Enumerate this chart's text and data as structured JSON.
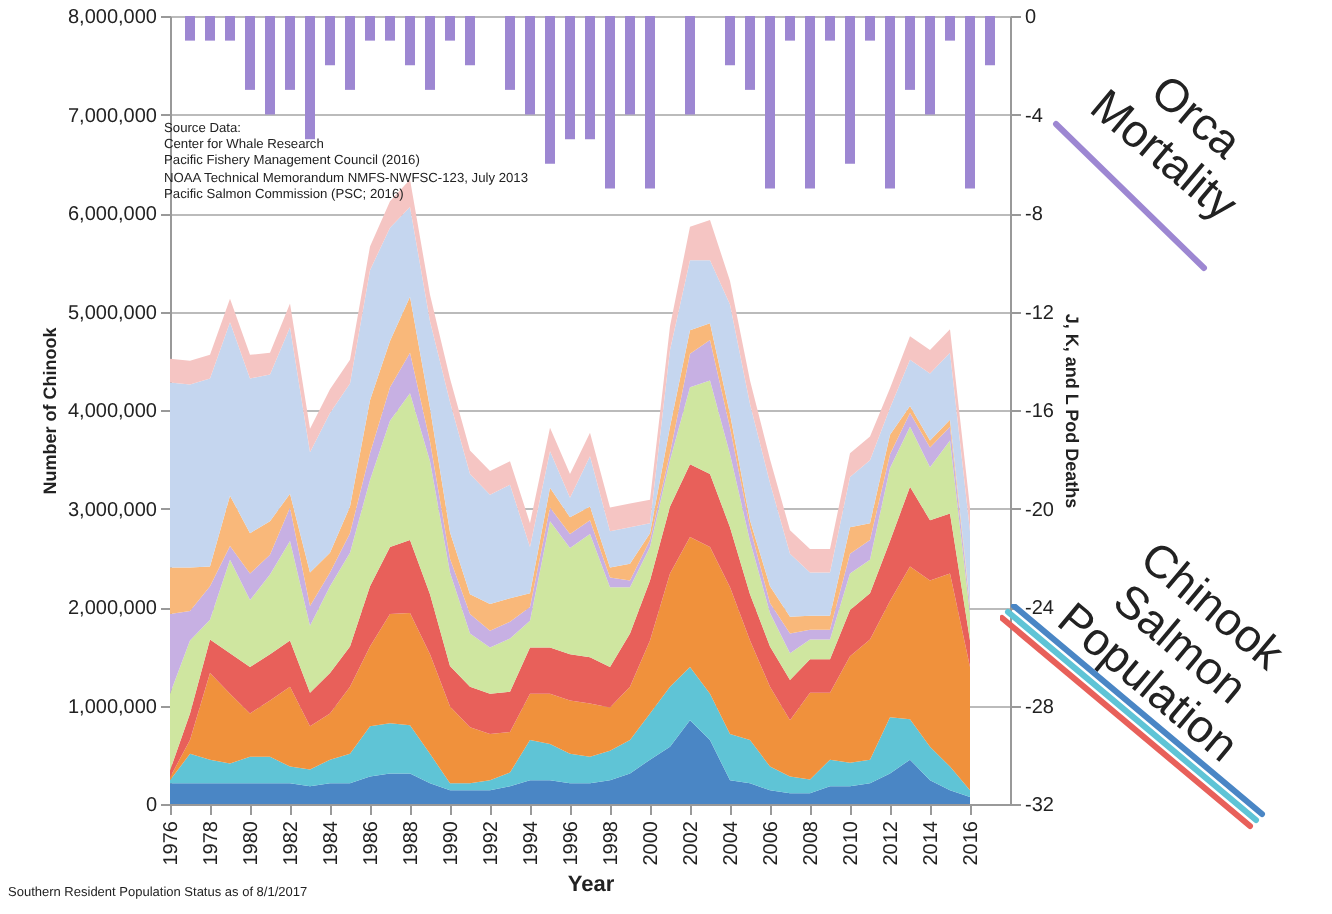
{
  "chart_data": {
    "type": "area",
    "stacked": true,
    "xlabel": "Year",
    "ylabel": "Number of Chinook",
    "y2label": "J, K, and L Pod Deaths",
    "x": [
      1976,
      1977,
      1978,
      1979,
      1980,
      1981,
      1982,
      1983,
      1984,
      1985,
      1986,
      1987,
      1988,
      1989,
      1990,
      1991,
      1992,
      1993,
      1994,
      1995,
      1996,
      1997,
      1998,
      1999,
      2000,
      2001,
      2002,
      2003,
      2004,
      2005,
      2006,
      2007,
      2008,
      2009,
      2010,
      2011,
      2012,
      2013,
      2014,
      2015,
      2016
    ],
    "xlim": [
      1976,
      2018
    ],
    "xticks": [
      1976,
      1978,
      1980,
      1982,
      1984,
      1986,
      1988,
      1990,
      1992,
      1994,
      1996,
      1998,
      2000,
      2002,
      2004,
      2006,
      2008,
      2010,
      2012,
      2014,
      2016
    ],
    "ylim": [
      0,
      8000000
    ],
    "yticks": [
      0,
      {
        "value": 1000000,
        "label": "1,000,000"
      },
      {
        "value": 2000000,
        "label": "2,000,000"
      },
      {
        "value": 3000000,
        "label": "3,000,000"
      },
      {
        "value": 4000000,
        "label": "4,000,000"
      },
      {
        "value": 5000000,
        "label": "5,000,000"
      },
      {
        "value": 6000000,
        "label": "6,000,000"
      },
      {
        "value": 7000000,
        "label": "7,000,000"
      },
      {
        "value": 8000000,
        "label": "8,000,000"
      }
    ],
    "y2lim": [
      -32,
      0
    ],
    "y2ticks": [
      -32,
      -28,
      -24,
      -20,
      -16,
      -12,
      -8,
      -4,
      0
    ],
    "grid": "y",
    "legend": "right",
    "series": [
      {
        "color": "#4a86c5",
        "values": [
          210000,
          210000,
          210000,
          210000,
          210000,
          210000,
          210000,
          180000,
          210000,
          210000,
          280000,
          310000,
          310000,
          210000,
          140000,
          140000,
          140000,
          180000,
          240000,
          240000,
          210000,
          210000,
          240000,
          310000,
          450000,
          580000,
          850000,
          650000,
          240000,
          210000,
          140000,
          110000,
          110000,
          180000,
          180000,
          210000,
          310000,
          450000,
          240000,
          140000,
          70000
        ]
      },
      {
        "color": "#5fc4d6",
        "values": [
          30000,
          300000,
          240000,
          200000,
          270000,
          270000,
          170000,
          170000,
          240000,
          300000,
          510000,
          510000,
          490000,
          300000,
          70000,
          70000,
          100000,
          140000,
          410000,
          370000,
          300000,
          270000,
          300000,
          340000,
          470000,
          610000,
          540000,
          470000,
          470000,
          440000,
          240000,
          170000,
          140000,
          270000,
          240000,
          240000,
          570000,
          410000,
          340000,
          240000,
          70000
        ]
      },
      {
        "color": "#f0913c",
        "values": [
          30000,
          140000,
          880000,
          710000,
          440000,
          570000,
          810000,
          440000,
          470000,
          680000,
          810000,
          1110000,
          1140000,
          1010000,
          780000,
          570000,
          470000,
          410000,
          470000,
          510000,
          540000,
          540000,
          440000,
          540000,
          740000,
          1150000,
          1320000,
          1490000,
          1490000,
          1010000,
          810000,
          570000,
          880000,
          680000,
          1080000,
          1220000,
          1180000,
          1550000,
          1690000,
          1960000,
          1250000
        ]
      },
      {
        "color": "#e8605a",
        "values": [
          70000,
          270000,
          340000,
          410000,
          470000,
          470000,
          470000,
          340000,
          410000,
          410000,
          610000,
          680000,
          740000,
          610000,
          410000,
          410000,
          410000,
          410000,
          470000,
          470000,
          470000,
          470000,
          410000,
          540000,
          610000,
          680000,
          740000,
          740000,
          610000,
          470000,
          410000,
          410000,
          340000,
          340000,
          470000,
          470000,
          610000,
          810000,
          610000,
          610000,
          270000
        ]
      },
      {
        "color": "#cfe6a0",
        "values": [
          780000,
          740000,
          200000,
          950000,
          680000,
          810000,
          1010000,
          680000,
          880000,
          950000,
          1080000,
          1280000,
          1490000,
          1350000,
          950000,
          540000,
          470000,
          540000,
          270000,
          1280000,
          1080000,
          1250000,
          810000,
          470000,
          340000,
          470000,
          780000,
          950000,
          740000,
          540000,
          340000,
          270000,
          200000,
          200000,
          370000,
          340000,
          740000,
          610000,
          540000,
          740000,
          270000
        ]
      },
      {
        "color": "#c7b0e3",
        "values": [
          810000,
          300000,
          340000,
          140000,
          270000,
          200000,
          340000,
          200000,
          140000,
          200000,
          270000,
          340000,
          410000,
          200000,
          140000,
          200000,
          170000,
          170000,
          140000,
          140000,
          140000,
          140000,
          100000,
          70000,
          70000,
          70000,
          340000,
          410000,
          270000,
          140000,
          100000,
          200000,
          100000,
          100000,
          200000,
          200000,
          140000,
          140000,
          200000,
          140000,
          70000
        ]
      },
      {
        "color": "#f9b87a",
        "values": [
          470000,
          440000,
          200000,
          510000,
          410000,
          340000,
          140000,
          340000,
          200000,
          270000,
          540000,
          470000,
          570000,
          340000,
          270000,
          200000,
          270000,
          240000,
          140000,
          200000,
          170000,
          140000,
          100000,
          170000,
          70000,
          270000,
          240000,
          170000,
          140000,
          70000,
          170000,
          170000,
          140000,
          140000,
          270000,
          170000,
          200000,
          70000,
          70000,
          70000,
          30000
        ]
      },
      {
        "color": "#c5d6ef",
        "values": [
          1880000,
          1860000,
          1910000,
          1760000,
          1570000,
          1490000,
          1690000,
          1220000,
          1420000,
          1250000,
          1320000,
          1150000,
          910000,
          880000,
          1320000,
          1220000,
          1110000,
          1150000,
          470000,
          370000,
          200000,
          510000,
          370000,
          370000,
          100000,
          780000,
          710000,
          640000,
          1110000,
          1180000,
          1050000,
          640000,
          440000,
          440000,
          510000,
          640000,
          270000,
          470000,
          680000,
          680000,
          740000
        ]
      },
      {
        "color": "#f5c5c3",
        "values": [
          240000,
          240000,
          240000,
          240000,
          240000,
          220000,
          240000,
          240000,
          240000,
          240000,
          240000,
          270000,
          280000,
          270000,
          240000,
          240000,
          240000,
          240000,
          240000,
          240000,
          240000,
          240000,
          240000,
          240000,
          240000,
          240000,
          340000,
          410000,
          240000,
          240000,
          240000,
          240000,
          240000,
          240000,
          240000,
          240000,
          200000,
          240000,
          240000,
          240000,
          240000
        ]
      },
      {
        "name": "Orca Mortality",
        "type": "bar",
        "axis": "y2",
        "color": "#9d87d2",
        "x": [
          1977,
          1978,
          1979,
          1980,
          1981,
          1982,
          1983,
          1984,
          1985,
          1986,
          1987,
          1988,
          1989,
          1990,
          1991,
          1992,
          1993,
          1994,
          1995,
          1996,
          1997,
          1998,
          1999,
          2000,
          2001,
          2002,
          2003,
          2004,
          2005,
          2006,
          2007,
          2008,
          2009,
          2010,
          2011,
          2012,
          2013,
          2014,
          2015,
          2016,
          2017
        ],
        "values": [
          -1,
          -1,
          -1,
          -3,
          -4,
          -3,
          -5,
          -2,
          -3,
          -1,
          -1,
          -2,
          -3,
          -1,
          -2,
          0,
          -3,
          -4,
          -6,
          -5,
          -5,
          -7,
          -4,
          -7,
          0,
          -4,
          0,
          -2,
          -3,
          -7,
          -1,
          -7,
          -1,
          -6,
          -1,
          -7,
          -3,
          -4,
          -1,
          -7,
          -2
        ]
      }
    ],
    "annotations": [
      "Chinook Salmon Population",
      "Source Data:",
      "Center for Whale Research",
      "Pacific Fishery Management Council (2016)",
      "NOAA Technical Memorandum NMFS-NWFSC-123, July 2013",
      "Pacific Salmon Commission (PSC; 2016)",
      "Southern Resident Population Status as of 8/1/2017"
    ]
  }
}
